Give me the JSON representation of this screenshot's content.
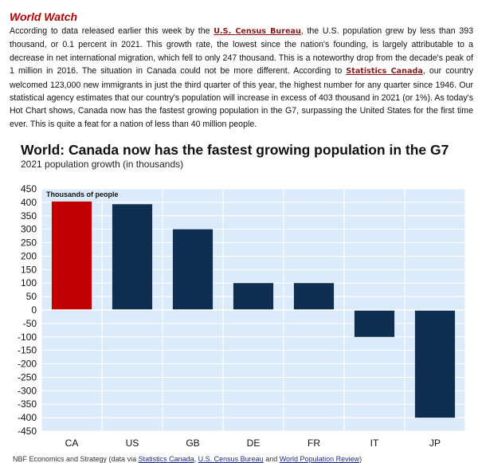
{
  "article": {
    "section_title": "World Watch",
    "p_1": "According to data released earlier this week by the ",
    "link_census": "U.S. Census Bureau",
    "p_2": ", the U.S. population grew by less than 393 thousand, or 0.1 percent in 2021. This growth rate, the lowest since the nation's founding, is largely attributable to a decrease in net international migration, which fell to only 247 thousand. This is a noteworthy drop from the decade's peak of 1 million in 2016. The situation in Canada could not be more different. According to ",
    "link_statcan": "Statistics Canada",
    "p_3": ", our country welcomed 123,000 new immigrants in just the third quarter of this year, the highest number for any quarter since 1946. Our statistical agency estimates that our country's population will increase in excess of 403 thousand in 2021 (or 1%). As today's Hot Chart shows, Canada now has the fastest growing population in the G7, surpassing the United States for the first time ever. This is quite a feat for a nation of less than 40 million people."
  },
  "chart_data": {
    "type": "bar",
    "title": "World: Canada now has the fastest growing population in the G7",
    "subtitle": "2021 population growth (in thousands)",
    "unit_label": "Thousands of people",
    "categories": [
      "CA",
      "US",
      "GB",
      "DE",
      "FR",
      "IT",
      "JP"
    ],
    "values": [
      403,
      393,
      300,
      100,
      100,
      -100,
      -400
    ],
    "colors": [
      "#c00000",
      "#0e2f4f",
      "#0e2f4f",
      "#0e2f4f",
      "#0e2f4f",
      "#0e2f4f",
      "#0e2f4f"
    ],
    "ylim": [
      -450,
      450
    ],
    "yticks": [
      450,
      400,
      350,
      300,
      250,
      200,
      150,
      100,
      50,
      0,
      -50,
      -100,
      -150,
      -200,
      -250,
      -300,
      -350,
      -400,
      -450
    ],
    "grid": true,
    "plot_background": "#dcebfa"
  },
  "source": {
    "prefix": "NBF Economics and Strategy (data via ",
    "link_1": "Statistics Canada",
    "sep_1": ", ",
    "link_2": "U.S. Census Bureau",
    "sep_2": " and ",
    "link_3": "World Population Review",
    "suffix": ")"
  }
}
